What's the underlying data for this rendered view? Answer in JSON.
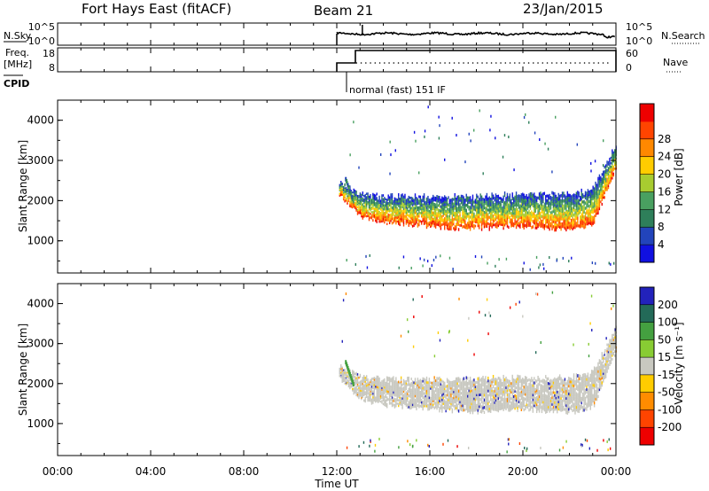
{
  "header": {
    "station": "Fort Hays East (fitACF)",
    "beam": "Beam 21",
    "date": "23/Jan/2015"
  },
  "aux_panels": {
    "nsky": {
      "left_label": "N.Sky",
      "right_label": "N.Search",
      "left_ticks": [
        "10^5",
        "10^0"
      ],
      "right_ticks": [
        "10^5",
        "10^0"
      ]
    },
    "freq": {
      "left_label_1": "Freq.",
      "left_label_2": "[MHz]",
      "right_label": "Nave",
      "left_ticks": [
        "18",
        "8"
      ],
      "right_ticks": [
        "60",
        "0"
      ]
    },
    "cpid": {
      "label": "CPID",
      "text": "normal (fast) 151 IF"
    }
  },
  "colors": {
    "power_scale": [
      "#1010e0",
      "#2244bb",
      "#2e7f5a",
      "#49a060",
      "#a8cc30",
      "#ffcc00",
      "#ff8800",
      "#ff4400",
      "#ee0000"
    ],
    "velocity_scale": [
      "#2222bb",
      "#236a58",
      "#44a040",
      "#88cc33",
      "#c8c8c0",
      "#ffcc00",
      "#ff8c00",
      "#ff4400",
      "#ee0000"
    ]
  },
  "chart_data": [
    {
      "type": "heatmap",
      "panel": "power",
      "ylabel": "Slant Range [km]",
      "ylim": [
        200,
        4500
      ],
      "y_ticks": [
        "1000",
        "2000",
        "3000",
        "4000"
      ],
      "colorbar_label": "Power [dB]",
      "colorbar_ticks": [
        "4",
        "8",
        "12",
        "16",
        "20",
        "24",
        "28"
      ],
      "x_hours": [
        12,
        13,
        14,
        15,
        16,
        17,
        18,
        19,
        20,
        21,
        22,
        23,
        24
      ],
      "echo_lower_km": [
        2200,
        1600,
        1450,
        1400,
        1350,
        1300,
        1280,
        1320,
        1340,
        1300,
        1250,
        1400,
        2800
      ],
      "echo_upper_km": [
        2500,
        2150,
        2100,
        2100,
        2100,
        2100,
        2100,
        2150,
        2150,
        2150,
        2150,
        2300,
        3400
      ]
    },
    {
      "type": "heatmap",
      "panel": "velocity",
      "ylabel": "Slant Range [km]",
      "ylim": [
        200,
        4500
      ],
      "y_ticks": [
        "1000",
        "2000",
        "3000",
        "4000"
      ],
      "colorbar_label": "Velocity [m s⁻¹]",
      "colorbar_ticks": [
        "200",
        "100",
        "50",
        "15",
        "-15",
        "-50",
        "-100",
        "-200"
      ],
      "x_hours": [
        12,
        13,
        14,
        15,
        16,
        17,
        18,
        19,
        20,
        21,
        22,
        23,
        24
      ],
      "echo_lower_km": [
        2200,
        1600,
        1450,
        1400,
        1350,
        1300,
        1280,
        1320,
        1340,
        1300,
        1250,
        1400,
        2800
      ],
      "echo_upper_km": [
        2500,
        2150,
        2100,
        2100,
        2100,
        2100,
        2100,
        2150,
        2150,
        2150,
        2150,
        2300,
        3400
      ]
    }
  ],
  "x_axis": {
    "label": "Time UT",
    "ticks": [
      "00:00",
      "04:00",
      "08:00",
      "12:00",
      "16:00",
      "20:00",
      "00:00"
    ],
    "tick_hours": [
      0,
      4,
      8,
      12,
      16,
      20,
      24
    ],
    "xlim": [
      0,
      24
    ]
  }
}
